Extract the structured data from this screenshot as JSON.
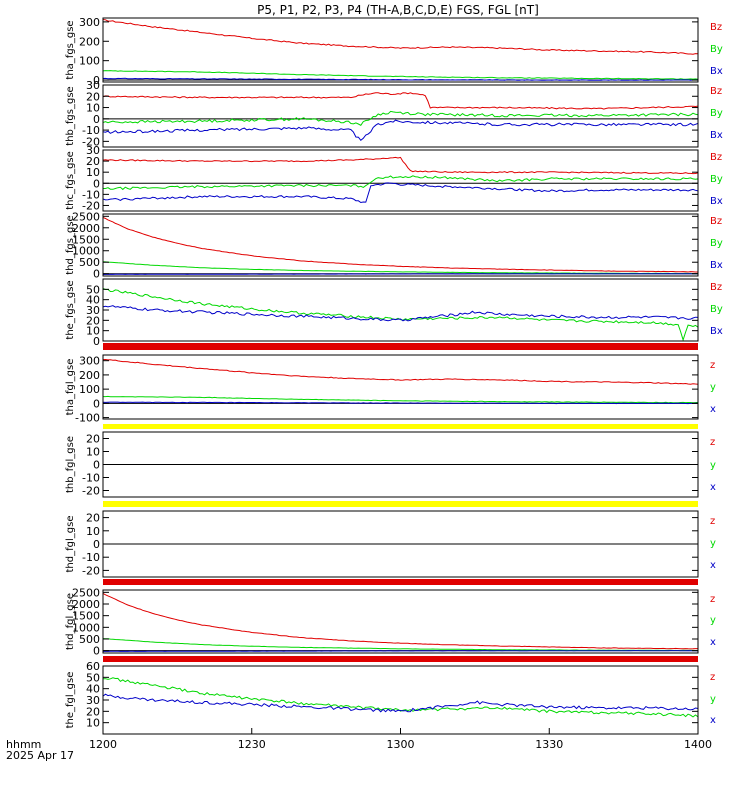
{
  "colors": {
    "red": "#e00000",
    "green": "#00d800",
    "blue": "#0000c8",
    "yellow": "#ffff00",
    "black": "#000000"
  },
  "title": "P5, P1, P2, P3, P4 (TH-A,B,C,D,E) FGS, FGL [nT]",
  "x_axis": {
    "label_line1": "hhmm",
    "label_line2": "2025 Apr 17",
    "ticks": [
      "1200",
      "1230",
      "1300",
      "1330",
      "1400"
    ],
    "range_min": [
      0,
      120
    ]
  },
  "chart_data": [
    {
      "type": "line",
      "ylabel": "tha_fgs_gse",
      "ylim": [
        -10,
        320
      ],
      "yticks": [
        "300",
        "200",
        "100",
        "0"
      ],
      "ytick_values": [
        300,
        200,
        100,
        0
      ],
      "components": [
        "Bz",
        "By",
        "Bx"
      ],
      "comp_colors": [
        "red",
        "green",
        "blue"
      ],
      "bar_below": null,
      "gaps": [],
      "series": [
        {
          "name": "Bz",
          "color": "red",
          "x": [
            0,
            10,
            20,
            30,
            40,
            50,
            60,
            70,
            80,
            90,
            100,
            110,
            120
          ],
          "y": [
            310,
            275,
            245,
            215,
            190,
            175,
            165,
            170,
            165,
            155,
            150,
            145,
            135
          ],
          "noise": 3
        },
        {
          "name": "By",
          "color": "green",
          "x": [
            0,
            20,
            40,
            60,
            80,
            100,
            120
          ],
          "y": [
            48,
            42,
            28,
            18,
            12,
            8,
            5
          ],
          "noise": 1.5
        },
        {
          "name": "Bx",
          "color": "blue",
          "x": [
            0,
            30,
            60,
            90,
            120
          ],
          "y": [
            8,
            5,
            2,
            0,
            0
          ],
          "noise": 1.5
        }
      ]
    },
    {
      "type": "line",
      "ylabel": "thb_fgs_gse",
      "ylim": [
        -25,
        30
      ],
      "yticks": [
        "30",
        "20",
        "10",
        "0",
        "-10",
        "-20"
      ],
      "ytick_values": [
        30,
        20,
        10,
        0,
        -10,
        -20
      ],
      "components": [
        "Bz",
        "By",
        "Bx"
      ],
      "comp_colors": [
        "red",
        "green",
        "blue"
      ],
      "bar_below": null,
      "gaps": [],
      "series": [
        {
          "name": "Bz",
          "color": "red",
          "x": [
            0,
            20,
            40,
            50,
            52,
            55,
            58,
            62,
            65,
            66,
            80,
            100,
            120
          ],
          "y": [
            20,
            19,
            19,
            19,
            21,
            23,
            22,
            23,
            21,
            10,
            10,
            9,
            11
          ],
          "noise": 0.6
        },
        {
          "name": "By",
          "color": "green",
          "x": [
            0,
            20,
            40,
            50,
            52,
            55,
            58,
            65,
            80,
            100,
            120
          ],
          "y": [
            -3,
            -2,
            0,
            -3,
            -5,
            3,
            6,
            4,
            3,
            3,
            4
          ],
          "noise": 1.2
        },
        {
          "name": "Bx",
          "color": "blue",
          "x": [
            0,
            20,
            40,
            50,
            52,
            55,
            58,
            65,
            80,
            100,
            120
          ],
          "y": [
            -12,
            -10,
            -8,
            -10,
            -20,
            -6,
            -2,
            -3,
            -5,
            -5,
            -5
          ],
          "noise": 1.2
        }
      ]
    },
    {
      "type": "line",
      "ylabel": "thc_fgs_gse",
      "ylim": [
        -25,
        30
      ],
      "yticks": [
        "30",
        "20",
        "10",
        "0",
        "-10",
        "-20"
      ],
      "ytick_values": [
        30,
        20,
        10,
        0,
        -10,
        -20
      ],
      "components": [
        "Bz",
        "By",
        "Bx"
      ],
      "comp_colors": [
        "red",
        "green",
        "blue"
      ],
      "bar_below": null,
      "gaps": [],
      "series": [
        {
          "name": "Bz",
          "color": "red",
          "x": [
            0,
            20,
            40,
            50,
            55,
            58,
            60,
            62,
            70,
            90,
            120
          ],
          "y": [
            21,
            20,
            20,
            21,
            22,
            23,
            23,
            11,
            10,
            10,
            9
          ],
          "noise": 0.5
        },
        {
          "name": "By",
          "color": "green",
          "x": [
            0,
            20,
            40,
            50,
            53,
            55,
            60,
            70,
            80,
            90,
            100,
            120
          ],
          "y": [
            -5,
            -3,
            -2,
            -2,
            -3,
            5,
            6,
            5,
            2,
            4,
            4,
            4
          ],
          "noise": 1.0
        },
        {
          "name": "Bx",
          "color": "blue",
          "x": [
            0,
            20,
            40,
            50,
            53,
            54,
            58,
            60,
            70,
            80,
            90,
            100
          ],
          "y": [
            -15,
            -12,
            -12,
            -14,
            -18,
            -2,
            0,
            -1,
            -3,
            -5,
            -7,
            -6
          ],
          "noise": 1.0
        }
      ]
    },
    {
      "type": "line",
      "ylabel": "thd_fgs_gse",
      "ylim": [
        -100,
        2600
      ],
      "yticks": [
        "2500",
        "2000",
        "1500",
        "1000",
        "500",
        "0"
      ],
      "ytick_values": [
        2500,
        2000,
        1500,
        1000,
        500,
        0
      ],
      "components": [
        "Bz",
        "By",
        "Bx"
      ],
      "comp_colors": [
        "red",
        "green",
        "blue"
      ],
      "bar_below": null,
      "gaps": [],
      "series": [
        {
          "name": "Bz",
          "color": "red",
          "x": [
            0,
            5,
            10,
            15,
            20,
            30,
            40,
            50,
            60,
            70,
            80,
            90,
            100,
            110,
            120
          ],
          "y": [
            2450,
            1950,
            1600,
            1320,
            1100,
            780,
            560,
            420,
            320,
            250,
            200,
            160,
            120,
            100,
            80
          ],
          "noise": 8
        },
        {
          "name": "By",
          "color": "green",
          "x": [
            0,
            10,
            20,
            30,
            40,
            60,
            80,
            100,
            120
          ],
          "y": [
            520,
            370,
            260,
            190,
            140,
            80,
            40,
            20,
            10
          ],
          "noise": 5
        },
        {
          "name": "Bx",
          "color": "blue",
          "x": [
            0,
            30,
            60,
            90,
            120
          ],
          "y": [
            -30,
            -20,
            -10,
            -5,
            0
          ],
          "noise": 4
        }
      ]
    },
    {
      "type": "line",
      "ylabel": "the_fgs_gse",
      "ylim": [
        0,
        60
      ],
      "yticks": [
        "50",
        "40",
        "30",
        "20",
        "10",
        "0"
      ],
      "ytick_values": [
        50,
        40,
        30,
        20,
        10,
        0
      ],
      "components": [
        "Bz",
        "By",
        "Bx"
      ],
      "comp_colors": [
        "red",
        "green",
        "blue"
      ],
      "bar_below": "red",
      "gaps": [],
      "series": [
        {
          "name": "By",
          "color": "green",
          "x": [
            0,
            10,
            20,
            30,
            40,
            50,
            60,
            70,
            80,
            90,
            100,
            110,
            116,
            117,
            118,
            120
          ],
          "y": [
            50,
            43,
            36,
            31,
            27,
            24,
            21,
            22,
            23,
            20,
            19,
            18,
            16,
            2,
            15,
            14
          ],
          "noise": 1.2
        },
        {
          "name": "Bx",
          "color": "blue",
          "x": [
            0,
            10,
            20,
            30,
            40,
            50,
            60,
            70,
            75,
            80,
            90,
            100,
            110,
            120
          ],
          "y": [
            34,
            30,
            28,
            26,
            24,
            22,
            20,
            25,
            28,
            26,
            24,
            23,
            23,
            22
          ],
          "noise": 1.3
        }
      ]
    },
    {
      "type": "line",
      "ylabel": "tha_fgl_gse",
      "ylim": [
        -110,
        340
      ],
      "yticks": [
        "300",
        "200",
        "100",
        "0",
        "-100"
      ],
      "ytick_values": [
        300,
        200,
        100,
        0,
        -100
      ],
      "components": [
        "z",
        "y",
        "x"
      ],
      "comp_colors": [
        "red",
        "green",
        "blue"
      ],
      "bar_below": "yellow",
      "gaps": [],
      "series": [
        {
          "name": "z",
          "color": "red",
          "x": [
            0,
            10,
            20,
            30,
            40,
            50,
            60,
            70,
            80,
            90,
            100,
            110,
            120
          ],
          "y": [
            310,
            275,
            245,
            215,
            190,
            175,
            165,
            170,
            165,
            155,
            150,
            145,
            135
          ],
          "noise": 3
        },
        {
          "name": "y",
          "color": "green",
          "x": [
            0,
            20,
            40,
            60,
            80,
            100,
            120
          ],
          "y": [
            48,
            42,
            28,
            18,
            12,
            8,
            5
          ],
          "noise": 1.5
        },
        {
          "name": "x",
          "color": "blue",
          "x": [
            0,
            30,
            60,
            90,
            120
          ],
          "y": [
            8,
            5,
            2,
            0,
            0
          ],
          "noise": 1.5
        }
      ]
    },
    {
      "type": "line",
      "ylabel": "thb_fgl_gse",
      "ylim": [
        -25,
        25
      ],
      "yticks": [
        "20",
        "10",
        "0",
        "-10",
        "-20"
      ],
      "ytick_values": [
        20,
        10,
        0,
        -10,
        -20
      ],
      "components": [
        "z",
        "y",
        "x"
      ],
      "comp_colors": [
        "red",
        "green",
        "blue"
      ],
      "bar_below": "yellow",
      "gaps": [],
      "series": []
    },
    {
      "type": "line",
      "ylabel": "thd_fgl_gse",
      "ylim": [
        -25,
        25
      ],
      "yticks": [
        "20",
        "10",
        "0",
        "-10",
        "-20"
      ],
      "ytick_values": [
        20,
        10,
        0,
        -10,
        -20
      ],
      "components": [
        "z",
        "y",
        "x"
      ],
      "comp_colors": [
        "red",
        "green",
        "blue"
      ],
      "bar_below": "red",
      "gaps": [],
      "series": []
    },
    {
      "type": "line",
      "ylabel": "thd_fgl_gse",
      "ylim": [
        -100,
        2600
      ],
      "yticks": [
        "2500",
        "2000",
        "1500",
        "1000",
        "500",
        "0"
      ],
      "ytick_values": [
        2500,
        2000,
        1500,
        1000,
        500,
        0
      ],
      "components": [
        "z",
        "y",
        "x"
      ],
      "comp_colors": [
        "red",
        "green",
        "blue"
      ],
      "bar_below": "red",
      "gaps": [],
      "series": [
        {
          "name": "z",
          "color": "red",
          "x": [
            0,
            5,
            10,
            15,
            20,
            30,
            40,
            50,
            60,
            70,
            80,
            90,
            100,
            110,
            120
          ],
          "y": [
            2450,
            1950,
            1600,
            1320,
            1100,
            780,
            560,
            420,
            320,
            250,
            200,
            160,
            120,
            100,
            80
          ],
          "noise": 8
        },
        {
          "name": "y",
          "color": "green",
          "x": [
            0,
            10,
            20,
            30,
            40,
            60,
            80,
            100,
            120
          ],
          "y": [
            520,
            370,
            260,
            190,
            140,
            80,
            40,
            20,
            10
          ],
          "noise": 5
        },
        {
          "name": "x",
          "color": "blue",
          "x": [
            0,
            30,
            60,
            90,
            120
          ],
          "y": [
            -30,
            -20,
            -10,
            -5,
            0
          ],
          "noise": 4
        }
      ]
    },
    {
      "type": "line",
      "ylabel": "the_fgl_gse",
      "ylim": [
        0,
        60
      ],
      "yticks": [
        "60",
        "50",
        "40",
        "30",
        "20",
        "10"
      ],
      "ytick_values": [
        60,
        50,
        40,
        30,
        20,
        10
      ],
      "components": [
        "z",
        "y",
        "x"
      ],
      "comp_colors": [
        "red",
        "green",
        "blue"
      ],
      "bar_below": null,
      "gaps": [],
      "series": [
        {
          "name": "y",
          "color": "green",
          "x": [
            0,
            10,
            20,
            30,
            40,
            50,
            60,
            70,
            80,
            90,
            100,
            110,
            120
          ],
          "y": [
            50,
            43,
            36,
            31,
            27,
            24,
            21,
            22,
            23,
            20,
            19,
            18,
            16
          ],
          "noise": 1.2
        },
        {
          "name": "x",
          "color": "blue",
          "x": [
            0,
            10,
            20,
            30,
            40,
            50,
            60,
            70,
            75,
            80,
            90,
            100,
            110,
            120
          ],
          "y": [
            34,
            30,
            28,
            26,
            24,
            22,
            20,
            25,
            28,
            26,
            24,
            23,
            23,
            22
          ],
          "noise": 1.3
        }
      ]
    }
  ]
}
